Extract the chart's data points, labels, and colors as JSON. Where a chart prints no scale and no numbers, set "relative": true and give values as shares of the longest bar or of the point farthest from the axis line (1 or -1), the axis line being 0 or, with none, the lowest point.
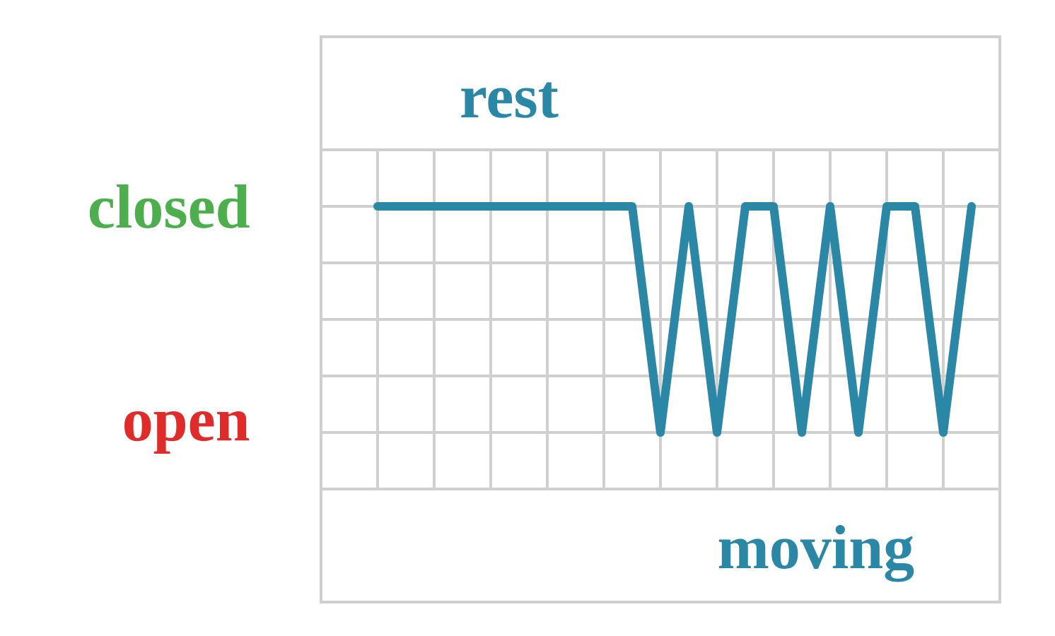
{
  "chart_data": {
    "type": "line",
    "categories": [
      null,
      null,
      null,
      null,
      null,
      null,
      null,
      null,
      null,
      null,
      null,
      null,
      null,
      null,
      null,
      null,
      null,
      null,
      null,
      null,
      null,
      null
    ],
    "values": [
      1,
      1,
      1,
      1,
      1,
      1,
      1,
      1,
      1,
      1,
      0,
      1,
      0,
      1,
      1,
      0,
      1,
      0,
      1,
      1,
      0,
      1
    ],
    "color": "#2a87a6",
    "relative": true,
    "grid": true,
    "line_style": "solid",
    "annotations": [
      "closed",
      "open",
      "rest",
      "moving"
    ]
  }
}
